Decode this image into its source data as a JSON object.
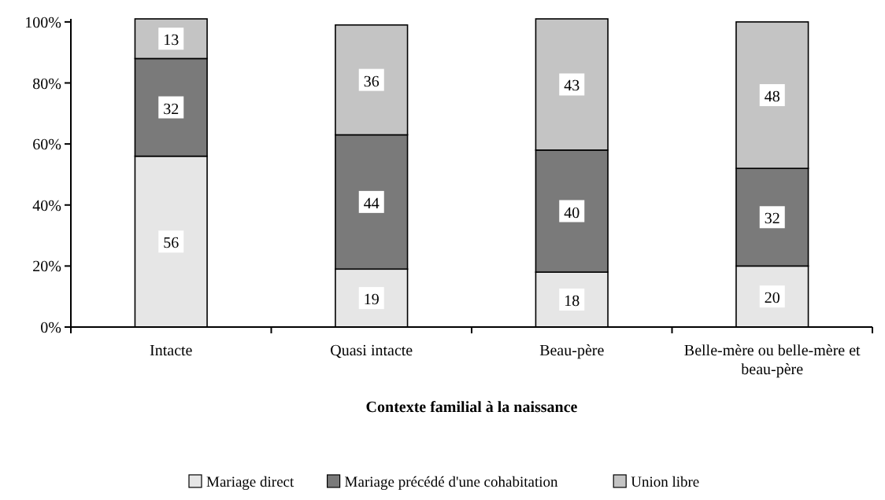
{
  "chart_data": {
    "type": "bar",
    "stacked": true,
    "xlabel": "Contexte familial à la naissance",
    "categories": [
      "Intacte",
      "Quasi intacte",
      "Beau-père",
      "Belle-mère ou belle-mère et beau-père"
    ],
    "series": [
      {
        "name": "Mariage direct",
        "color": "#e6e6e6",
        "values": [
          56,
          19,
          18,
          20
        ]
      },
      {
        "name": "Mariage précédé d'une cohabitation",
        "color": "#7a7a7a",
        "values": [
          32,
          44,
          40,
          32
        ]
      },
      {
        "name": "Union libre",
        "color": "#c4c4c4",
        "values": [
          13,
          36,
          43,
          48
        ]
      }
    ],
    "ylim": [
      0,
      101
    ],
    "yticks": [
      {
        "value": 0,
        "label": "0%"
      },
      {
        "value": 20,
        "label": "20%"
      },
      {
        "value": 40,
        "label": "40%"
      },
      {
        "value": 60,
        "label": "60%"
      },
      {
        "value": 80,
        "label": "80%"
      },
      {
        "value": 100,
        "label": "100%"
      }
    ],
    "data_labels": true,
    "legend": "bottom"
  }
}
